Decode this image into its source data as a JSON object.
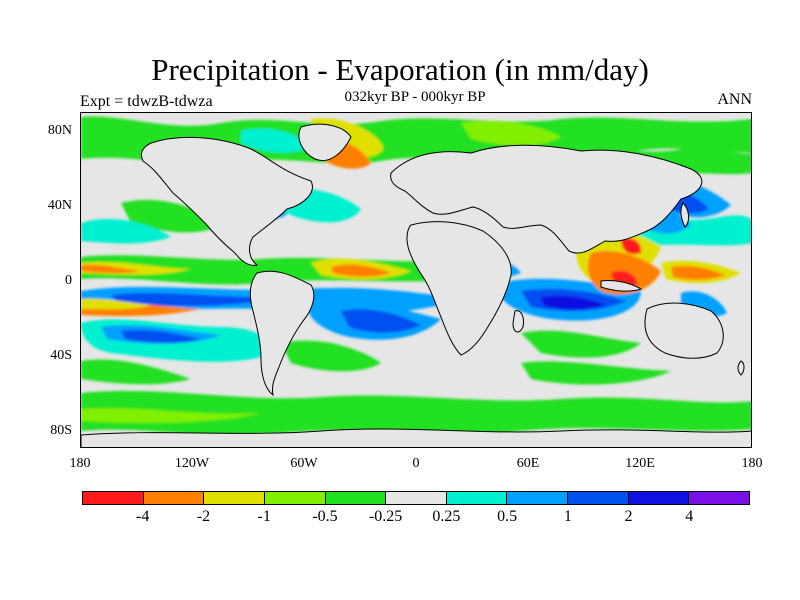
{
  "title": "Precipitation - Evaporation (in mm/day)",
  "subtitle": "032kyr BP - 000kyr BP",
  "left_label": "Expt = tdwzB-tdwza",
  "right_label": "ANN",
  "map": {
    "background_color": "#e6e6e6",
    "lat_ticks": [
      "80N",
      "40N",
      "0",
      "40S",
      "80S"
    ],
    "lon_ticks": [
      "180",
      "120W",
      "60W",
      "0",
      "60E",
      "120E",
      "180"
    ]
  },
  "colorbar": {
    "colors": [
      "#ff1a1a",
      "#ff8000",
      "#e0e000",
      "#80f000",
      "#20e020",
      "#e6e6e6",
      "#00f0d0",
      "#00a0ff",
      "#0050f0",
      "#1010e0",
      "#7a10e8"
    ],
    "labels": [
      "-4",
      "-2",
      "-1",
      "-0.5",
      "-0.25",
      "0.25",
      "0.5",
      "1",
      "2",
      "4"
    ]
  }
}
